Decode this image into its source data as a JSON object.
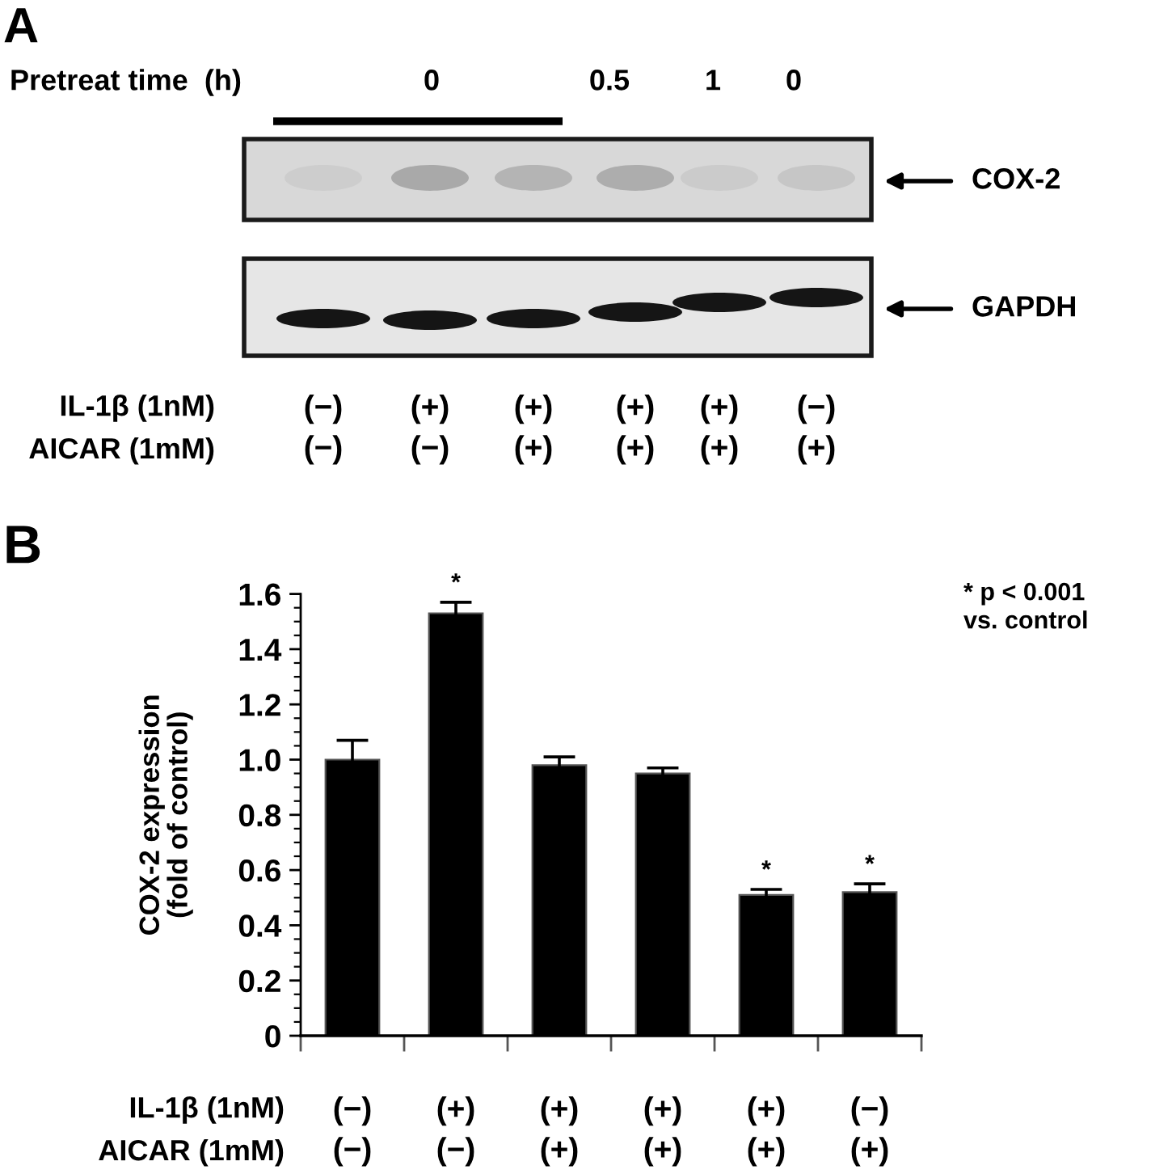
{
  "chart_data": [
    {
      "type": "other",
      "title": "A",
      "categories": [
        "(−)\n(−)",
        "(+)\n(−)",
        "(+)\n(+)",
        "(+)\n(+)",
        "(+)\n(+)",
        "(−)\n(+)"
      ],
      "annotations": [
        "Pretreat time  (h)",
        "0",
        "0.5",
        "1",
        "0",
        "COX-2",
        "GAPDH",
        "IL-1β (1nM)",
        "AICAR (1mM)"
      ]
    },
    {
      "type": "bar",
      "title": "B",
      "categories": [
        "(−)\n(−)",
        "(+)\n(−)",
        "(+)\n(+)",
        "(+)\n(+)",
        "(+)\n(+)",
        "(−)\n(+)"
      ],
      "values": [
        1.0,
        1.53,
        0.98,
        0.95,
        0.51,
        0.52
      ],
      "errors": [
        0.07,
        0.04,
        0.03,
        0.02,
        0.02,
        0.03
      ],
      "value_labels": [
        null,
        "*",
        null,
        null,
        "*",
        "*"
      ],
      "color": "#000000",
      "ylabel": "COX-2 expression\n(fold of control)",
      "ylim": [
        0,
        1.6
      ],
      "yticks": [
        0,
        {
          "value": 0.05,
          "label": null
        },
        {
          "value": 0.1,
          "label": null
        },
        {
          "value": 0.15,
          "label": null
        },
        0.2,
        {
          "value": 0.25,
          "label": null
        },
        {
          "value": 0.3,
          "label": null
        },
        {
          "value": 0.35,
          "label": null
        },
        0.4,
        {
          "value": 0.45,
          "label": null
        },
        {
          "value": 0.5,
          "label": null
        },
        {
          "value": 0.55,
          "label": null
        },
        0.6,
        {
          "value": 0.65,
          "label": null
        },
        {
          "value": 0.7,
          "label": null
        },
        {
          "value": 0.75,
          "label": null
        },
        0.8,
        {
          "value": 0.85,
          "label": null
        },
        {
          "value": 0.9,
          "label": null
        },
        {
          "value": 0.95,
          "label": null
        },
        {
          "value": 1,
          "label": "1.0"
        },
        {
          "value": 1.05,
          "label": null
        },
        {
          "value": 1.1,
          "label": null
        },
        {
          "value": 1.15,
          "label": null
        },
        1.2,
        {
          "value": 1.25,
          "label": null
        },
        {
          "value": 1.3,
          "label": null
        },
        {
          "value": 1.35,
          "label": null
        },
        1.4,
        {
          "value": 1.45,
          "label": null
        },
        {
          "value": 1.5,
          "label": null
        },
        {
          "value": 1.55,
          "label": null
        },
        1.6
      ],
      "annotations": [
        "* p < 0.001\nvs. control",
        "IL-1β (1nM)",
        "AICAR (1mM)"
      ]
    }
  ]
}
